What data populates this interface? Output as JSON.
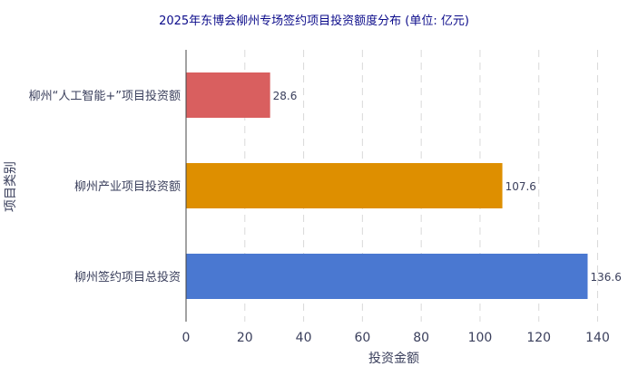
{
  "chart_data": {
    "type": "bar",
    "orientation": "horizontal",
    "title": "2025年东博会柳州专场签约项目投资额度分布 (单位: 亿元)",
    "xlabel": "投资金额",
    "ylabel": "项目类别",
    "categories": [
      "柳州“人工智能+”项目投资额",
      "柳州产业项目投资额",
      "柳州签约项目总投资"
    ],
    "values": [
      28.6,
      107.6,
      136.6
    ],
    "value_labels": [
      "28.6",
      "107.6",
      "136.6"
    ],
    "colors": [
      "#d95f5f",
      "#de8f00",
      "#4a78d1"
    ],
    "xlim": [
      0,
      142
    ],
    "xticks": [
      0,
      20,
      40,
      60,
      80,
      100,
      120,
      140
    ],
    "xtick_labels": [
      "0",
      "20",
      "40",
      "60",
      "80",
      "100",
      "120",
      "140"
    ],
    "grid": "vertical dashed"
  }
}
